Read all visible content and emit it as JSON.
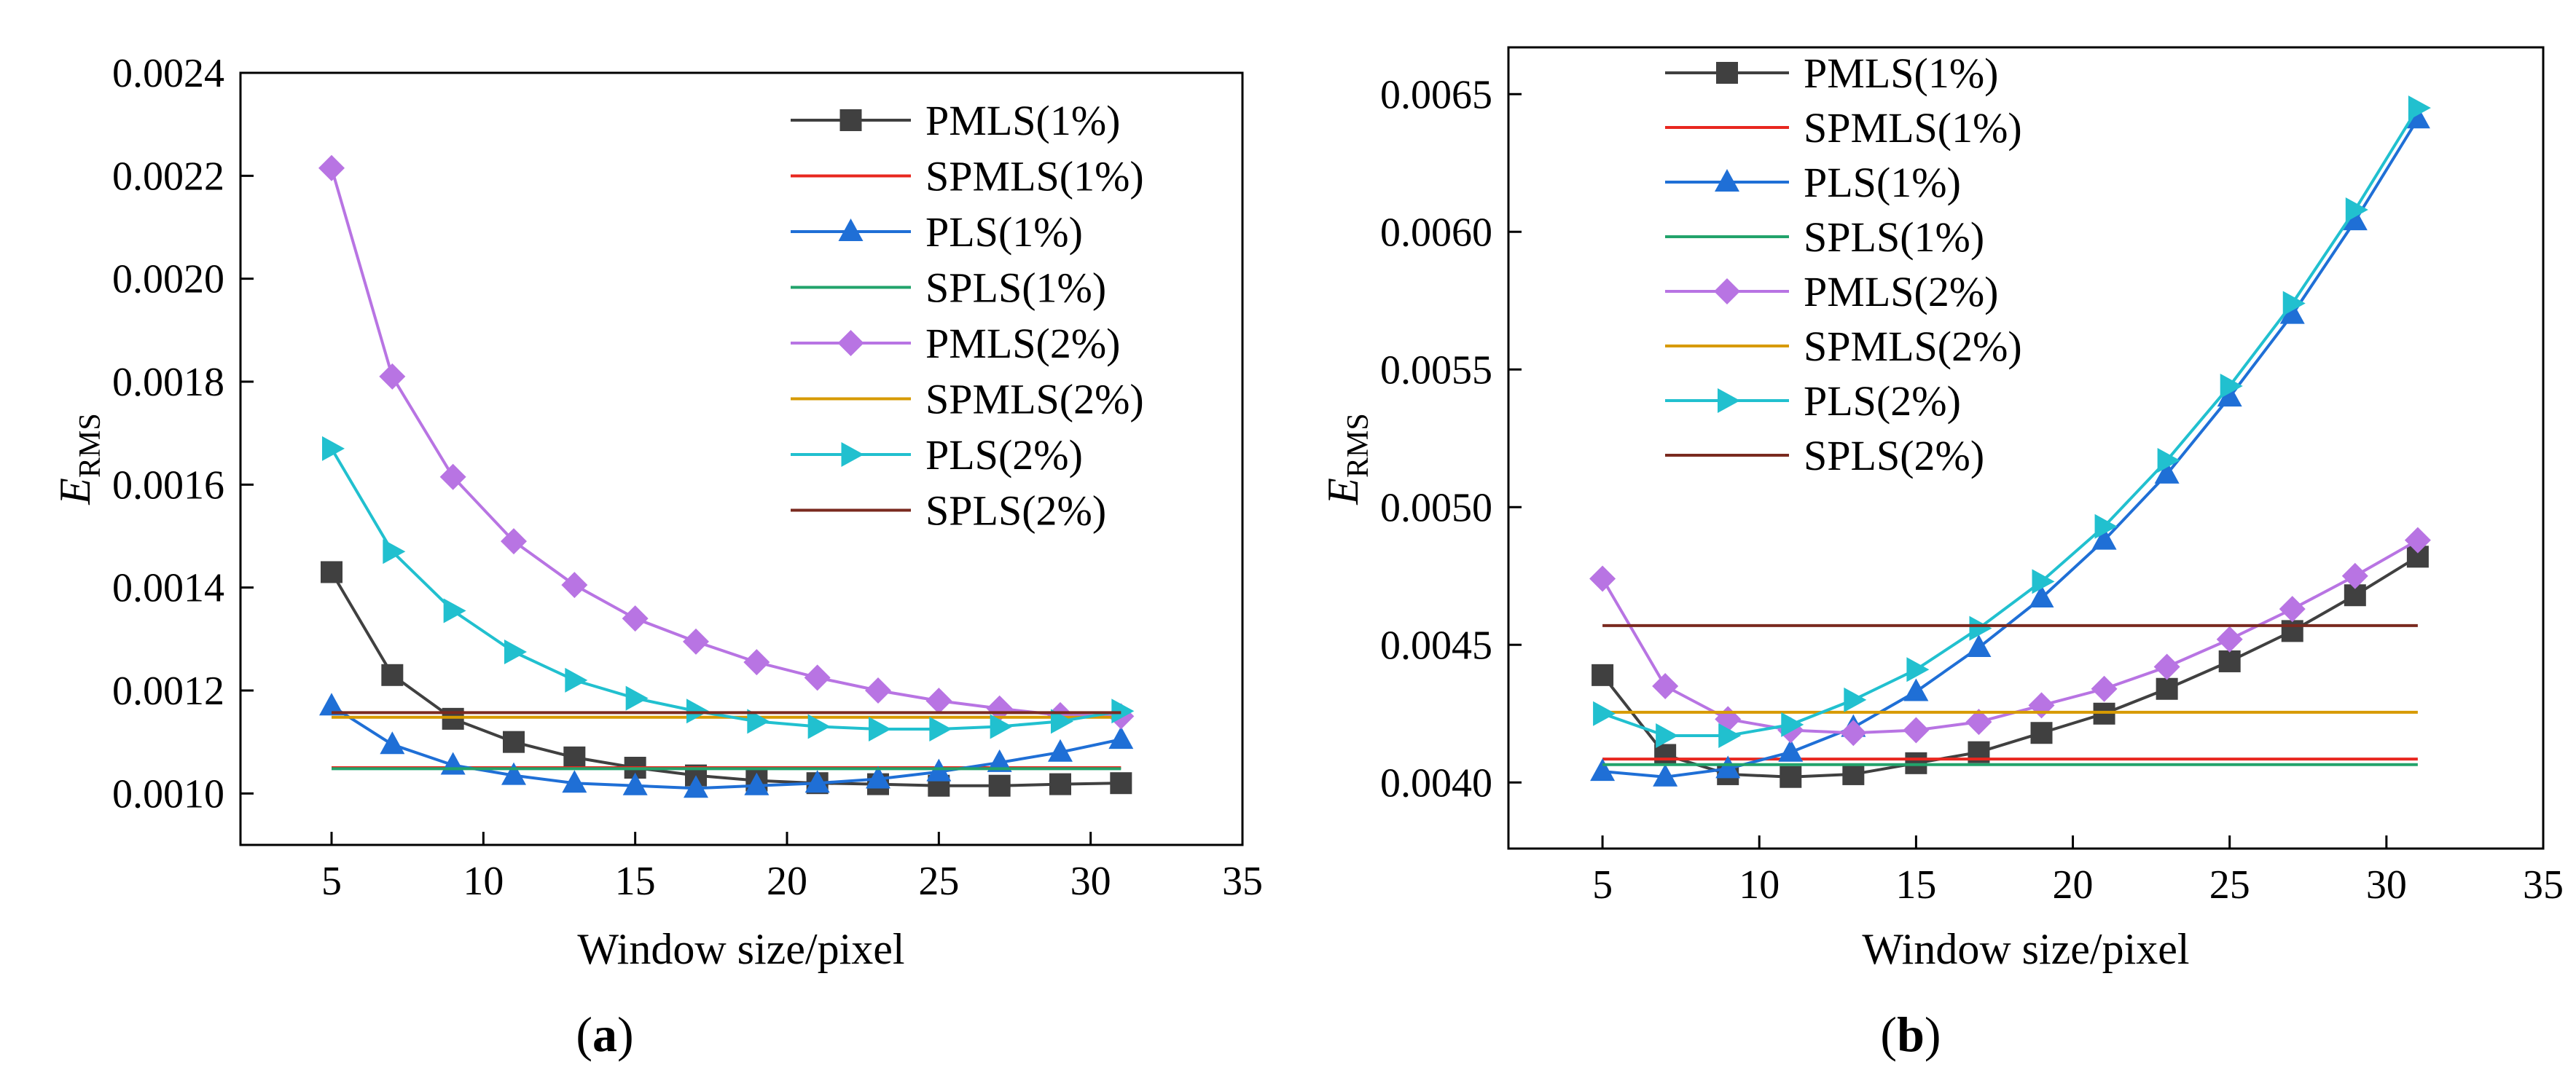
{
  "chart_data": [
    {
      "type": "line",
      "panel": "a",
      "caption_open": "(",
      "caption_letter": "a",
      "caption_close": ")",
      "xlabel": "Window size/pixel",
      "ylabel_main": "E",
      "ylabel_sub": "RMS",
      "xlim": [
        2,
        35
      ],
      "ylim": [
        0.0009,
        0.0024
      ],
      "xticks": [
        5,
        10,
        15,
        20,
        25,
        30,
        35
      ],
      "yticks": [
        0.001,
        0.0012,
        0.0014,
        0.0016,
        0.0018,
        0.002,
        0.0022,
        0.0024
      ],
      "ytick_labels": [
        "0.0010",
        "0.0012",
        "0.0014",
        "0.0016",
        "0.0018",
        "0.0020",
        "0.0022",
        "0.0024"
      ],
      "legend_position": "top-right",
      "x": [
        5,
        7,
        9,
        11,
        13,
        15,
        17,
        19,
        21,
        23,
        25,
        27,
        29,
        31
      ],
      "series": [
        {
          "name": "PMLS(1%)",
          "color": "#404040",
          "marker": "square",
          "values": [
            0.00143,
            0.00123,
            0.001145,
            0.0011,
            0.00107,
            0.00105,
            0.001035,
            0.001025,
            0.00102,
            0.001018,
            0.001015,
            0.001015,
            0.001018,
            0.00102
          ]
        },
        {
          "name": "SPMLS(1%)",
          "color": "#e8271f",
          "marker": "none",
          "constant": 0.00105
        },
        {
          "name": "PLS(1%)",
          "color": "#1f6fd6",
          "marker": "triangle",
          "values": [
            0.00117,
            0.001095,
            0.001055,
            0.001035,
            0.00102,
            0.001015,
            0.00101,
            0.001015,
            0.00102,
            0.001028,
            0.001042,
            0.00106,
            0.00108,
            0.001105
          ]
        },
        {
          "name": "SPLS(1%)",
          "color": "#22a36b",
          "marker": "none",
          "constant": 0.001048
        },
        {
          "name": "PMLS(2%)",
          "color": "#b874e3",
          "marker": "diamond",
          "values": [
            0.002215,
            0.00181,
            0.001615,
            0.00149,
            0.001405,
            0.00134,
            0.001295,
            0.001255,
            0.001225,
            0.0012,
            0.00118,
            0.001165,
            0.001152,
            0.00115
          ]
        },
        {
          "name": "SPMLS(2%)",
          "color": "#d79a00",
          "marker": "none",
          "constant": 0.001148
        },
        {
          "name": "PLS(2%)",
          "color": "#21c0cf",
          "marker": "right-triangle",
          "values": [
            0.00167,
            0.00147,
            0.001355,
            0.001275,
            0.00122,
            0.001185,
            0.00116,
            0.00114,
            0.00113,
            0.001125,
            0.001125,
            0.00113,
            0.00114,
            0.00116
          ]
        },
        {
          "name": "SPLS(2%)",
          "color": "#7a2a1f",
          "marker": "none",
          "constant": 0.001157
        }
      ]
    },
    {
      "type": "line",
      "panel": "b",
      "caption_open": "(",
      "caption_letter": "b",
      "caption_close": ")",
      "xlabel": "Window size/pixel",
      "ylabel_main": "E",
      "ylabel_sub": "RMS",
      "xlim": [
        2,
        35
      ],
      "ylim": [
        0.00376,
        0.00667
      ],
      "xticks": [
        5,
        10,
        15,
        20,
        25,
        30,
        35
      ],
      "yticks": [
        0.004,
        0.0045,
        0.005,
        0.0055,
        0.006,
        0.0065
      ],
      "ytick_labels": [
        "0.0040",
        "0.0045",
        "0.0050",
        "0.0055",
        "0.0060",
        "0.0065"
      ],
      "legend_position": "top-left",
      "x": [
        5,
        7,
        9,
        11,
        13,
        15,
        17,
        19,
        21,
        23,
        25,
        27,
        29,
        31
      ],
      "series": [
        {
          "name": "PMLS(1%)",
          "color": "#404040",
          "marker": "square",
          "values": [
            0.00439,
            0.0041,
            0.00403,
            0.00402,
            0.00403,
            0.00407,
            0.00411,
            0.00418,
            0.00425,
            0.00434,
            0.00444,
            0.00455,
            0.00468,
            0.00482
          ]
        },
        {
          "name": "SPMLS(1%)",
          "color": "#e8271f",
          "marker": "none",
          "constant": 0.004085
        },
        {
          "name": "PLS(1%)",
          "color": "#1f6fd6",
          "marker": "triangle",
          "values": [
            0.00404,
            0.00402,
            0.00405,
            0.00411,
            0.0042,
            0.00433,
            0.00449,
            0.00467,
            0.00488,
            0.00512,
            0.0054,
            0.0057,
            0.00604,
            0.00641
          ]
        },
        {
          "name": "SPLS(1%)",
          "color": "#22a36b",
          "marker": "none",
          "constant": 0.004065
        },
        {
          "name": "PMLS(2%)",
          "color": "#b874e3",
          "marker": "diamond",
          "values": [
            0.00474,
            0.00435,
            0.00423,
            0.00419,
            0.00418,
            0.00419,
            0.00422,
            0.00428,
            0.00434,
            0.00442,
            0.00452,
            0.00463,
            0.00475,
            0.00488
          ]
        },
        {
          "name": "SPMLS(2%)",
          "color": "#d79a00",
          "marker": "none",
          "constant": 0.004255
        },
        {
          "name": "PLS(2%)",
          "color": "#21c0cf",
          "marker": "right-triangle",
          "values": [
            0.00425,
            0.00417,
            0.00417,
            0.00421,
            0.0043,
            0.00441,
            0.00456,
            0.00473,
            0.00493,
            0.00517,
            0.00544,
            0.00574,
            0.00608,
            0.00645
          ]
        },
        {
          "name": "SPLS(2%)",
          "color": "#7a2a1f",
          "marker": "none",
          "constant": 0.00457
        }
      ]
    }
  ]
}
